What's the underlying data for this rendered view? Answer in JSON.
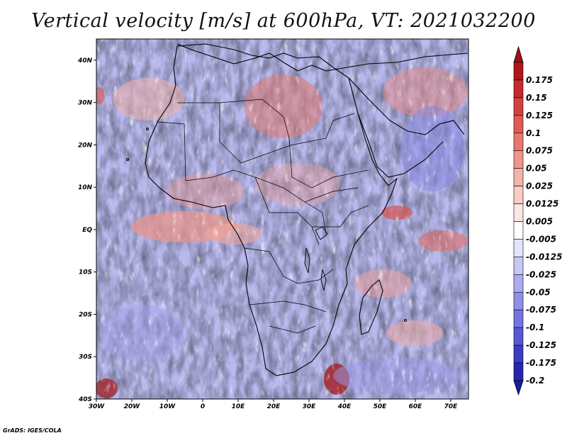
{
  "title": "Vertical velocity [m/s] at 600hPa, VT: 2021032200",
  "credit": "GrADS: IGES/COLA",
  "map": {
    "lon_range": [
      -30,
      75
    ],
    "lat_range": [
      -40,
      45
    ],
    "lat_ticks": [
      {
        "value": 40,
        "label": "40N"
      },
      {
        "value": 30,
        "label": "30N"
      },
      {
        "value": 20,
        "label": "20N"
      },
      {
        "value": 10,
        "label": "10N"
      },
      {
        "value": 0,
        "label": "EQ"
      },
      {
        "value": -10,
        "label": "10S"
      },
      {
        "value": -20,
        "label": "20S"
      },
      {
        "value": -30,
        "label": "30S"
      },
      {
        "value": -40,
        "label": "40S"
      }
    ],
    "lon_ticks": [
      {
        "value": -30,
        "label": "30W"
      },
      {
        "value": -20,
        "label": "20W"
      },
      {
        "value": -10,
        "label": "10W"
      },
      {
        "value": 0,
        "label": "0"
      },
      {
        "value": 10,
        "label": "10E"
      },
      {
        "value": 20,
        "label": "20E"
      },
      {
        "value": 30,
        "label": "30E"
      },
      {
        "value": 40,
        "label": "40E"
      },
      {
        "value": 50,
        "label": "50E"
      },
      {
        "value": 60,
        "label": "60E"
      },
      {
        "value": 70,
        "label": "70E"
      }
    ]
  },
  "colorbar": {
    "levels": [
      {
        "label": "0.175",
        "color": "#b0161c"
      },
      {
        "label": "0.15",
        "color": "#c42a2d"
      },
      {
        "label": "0.125",
        "color": "#d4413e"
      },
      {
        "label": "0.1",
        "color": "#df5b56"
      },
      {
        "label": "0.075",
        "color": "#e8776f"
      },
      {
        "label": "0.05",
        "color": "#ef958c"
      },
      {
        "label": "0.025",
        "color": "#f5b3ab"
      },
      {
        "label": "0.0125",
        "color": "#f9ccc6"
      },
      {
        "label": "0.005",
        "color": "#fce6e3"
      },
      {
        "label": "-0.005",
        "color": "#ffffff"
      },
      {
        "label": "-0.0125",
        "color": "#e4e4fb"
      },
      {
        "label": "-0.025",
        "color": "#c8c8f4"
      },
      {
        "label": "-0.05",
        "color": "#acacee"
      },
      {
        "label": "-0.075",
        "color": "#9090e8"
      },
      {
        "label": "-0.1",
        "color": "#7474e0"
      },
      {
        "label": "-0.125",
        "color": "#5858d4"
      },
      {
        "label": "-0.175",
        "color": "#3c3cc4"
      },
      {
        "label": "-0.2",
        "color": "#2626b0"
      }
    ],
    "top_arrow_color": "#a01018",
    "bottom_arrow_color": "#1c1ca0"
  }
}
